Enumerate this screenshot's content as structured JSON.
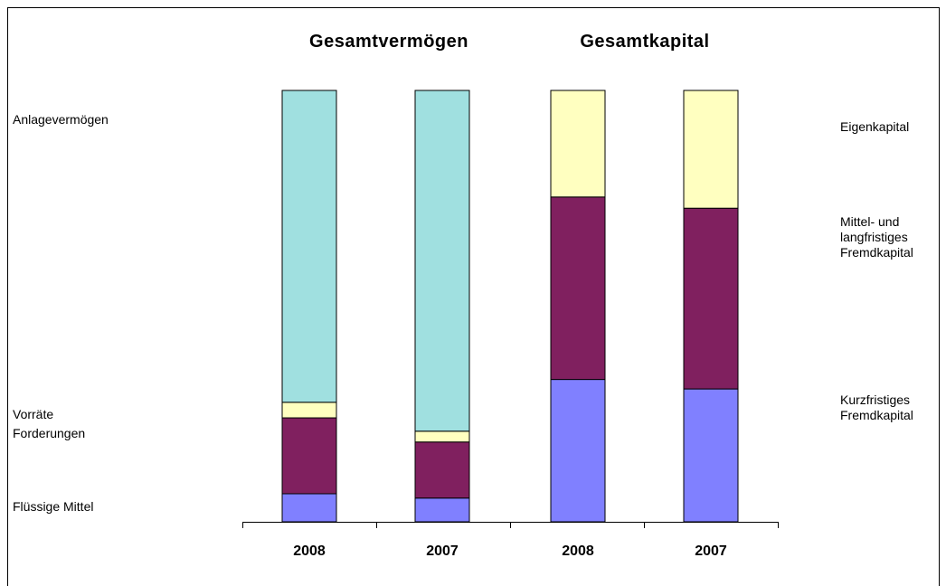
{
  "chart_data": {
    "type": "stacked_bar",
    "group_titles": [
      "Gesamtvermögen",
      "Gesamtkapital"
    ],
    "categories": [
      "2008",
      "2007",
      "2008",
      "2007"
    ],
    "series": [
      {
        "name": "Flüssige Mittel",
        "color": "#8080ff",
        "values": [
          6.5,
          5.5,
          null,
          null
        ]
      },
      {
        "name": "Forderungen",
        "color": "#80205f",
        "values": [
          17.6,
          13,
          null,
          null
        ]
      },
      {
        "name": "Vorräte",
        "color": "#ffffc0",
        "values": [
          3.6,
          2.5,
          null,
          null
        ]
      },
      {
        "name": "Anlagevermögen",
        "color": "#a0e0e0",
        "values": [
          72.3,
          79,
          null,
          null
        ]
      },
      {
        "name": "Kurzfristiges Fremdkapital",
        "color": "#8080ff",
        "values": [
          null,
          null,
          33,
          30.8
        ]
      },
      {
        "name": "Mittel- und langfristiges Fremdkapital",
        "color": "#80205f",
        "values": [
          null,
          null,
          42.3,
          41.9
        ]
      },
      {
        "name": "Eigenkapital",
        "color": "#ffffc0",
        "values": [
          null,
          null,
          24.7,
          27.3
        ]
      }
    ]
  }
}
